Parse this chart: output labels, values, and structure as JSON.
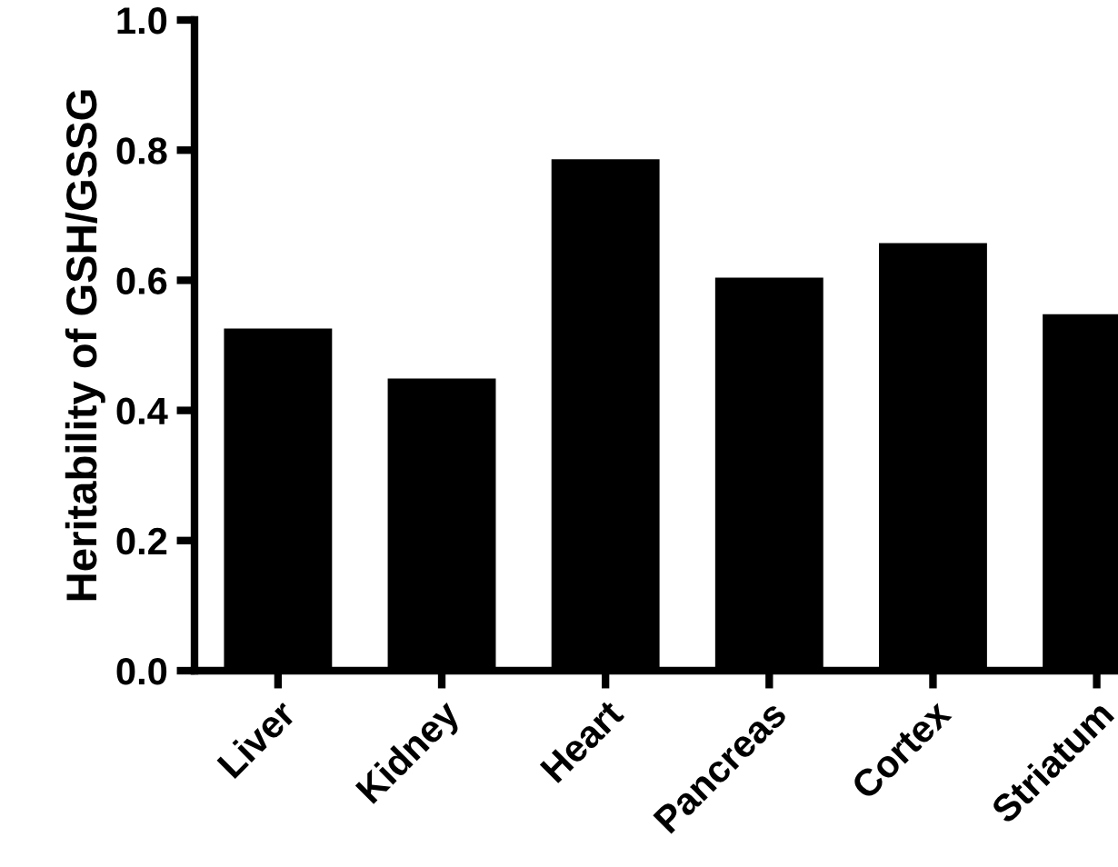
{
  "chart_data": {
    "type": "bar",
    "ylabel": "Heritability of GSH/GSSG",
    "categories": [
      "Liver",
      "Kidney",
      "Heart",
      "Pancreas",
      "Cortex",
      "Striatum"
    ],
    "values": [
      0.526,
      0.449,
      0.786,
      0.604,
      0.657,
      0.548
    ],
    "color": "#000000",
    "ylim": [
      0,
      1.0
    ],
    "yticks": [
      {
        "value": 0,
        "label": "0.0"
      },
      {
        "value": 0.2,
        "label": "0.2"
      },
      {
        "value": 0.4,
        "label": "0.4"
      },
      {
        "value": 0.6,
        "label": "0.6"
      },
      {
        "value": 0.8,
        "label": "0.8"
      },
      {
        "value": 1.0,
        "label": "1.0"
      }
    ],
    "grid": false
  }
}
